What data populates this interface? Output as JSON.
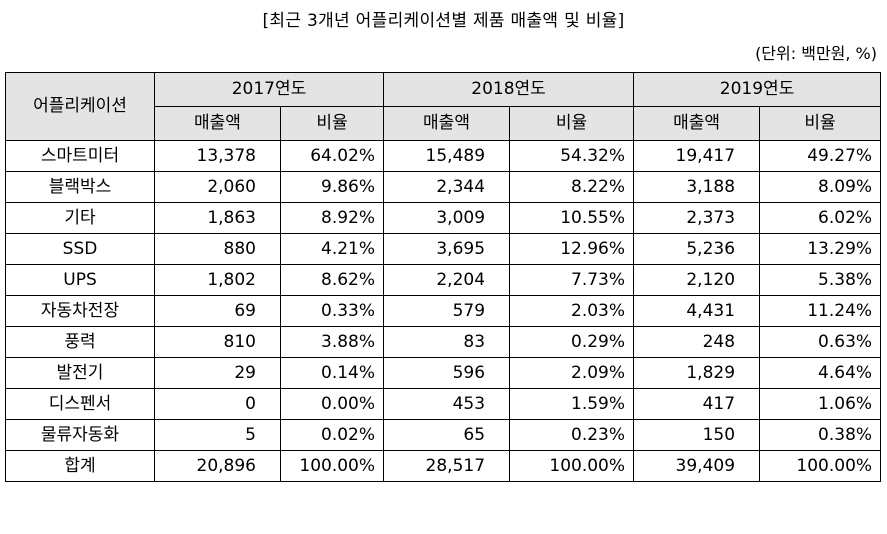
{
  "title": "[최근 3개년 어플리케이션별 제품 매출액 및 비율]",
  "unit": "(단위: 백만원, %)",
  "header": {
    "application": "어플리케이션",
    "years": [
      "2017연도",
      "2018연도",
      "2019연도"
    ],
    "sales": "매출액",
    "ratio": "비율"
  },
  "rows": [
    {
      "name": "스마트미터",
      "cells": [
        "13,378",
        "64.02%",
        "15,489",
        "54.32%",
        "19,417",
        "49.27%"
      ]
    },
    {
      "name": "블랙박스",
      "cells": [
        "2,060",
        "9.86%",
        "2,344",
        "8.22%",
        "3,188",
        "8.09%"
      ]
    },
    {
      "name": "기타",
      "cells": [
        "1,863",
        "8.92%",
        "3,009",
        "10.55%",
        "2,373",
        "6.02%"
      ]
    },
    {
      "name": "SSD",
      "cells": [
        "880",
        "4.21%",
        "3,695",
        "12.96%",
        "5,236",
        "13.29%"
      ]
    },
    {
      "name": "UPS",
      "cells": [
        "1,802",
        "8.62%",
        "2,204",
        "7.73%",
        "2,120",
        "5.38%"
      ]
    },
    {
      "name": "자동차전장",
      "cells": [
        "69",
        "0.33%",
        "579",
        "2.03%",
        "4,431",
        "11.24%"
      ]
    },
    {
      "name": "풍력",
      "cells": [
        "810",
        "3.88%",
        "83",
        "0.29%",
        "248",
        "0.63%"
      ]
    },
    {
      "name": "발전기",
      "cells": [
        "29",
        "0.14%",
        "596",
        "2.09%",
        "1,829",
        "4.64%"
      ]
    },
    {
      "name": "디스펜서",
      "cells": [
        "0",
        "0.00%",
        "453",
        "1.59%",
        "417",
        "1.06%"
      ]
    },
    {
      "name": "물류자동화",
      "cells": [
        "5",
        "0.02%",
        "65",
        "0.23%",
        "150",
        "0.38%"
      ]
    },
    {
      "name": "합계",
      "cells": [
        "20,896",
        "100.00%",
        "28,517",
        "100.00%",
        "39,409",
        "100.00%"
      ]
    }
  ]
}
